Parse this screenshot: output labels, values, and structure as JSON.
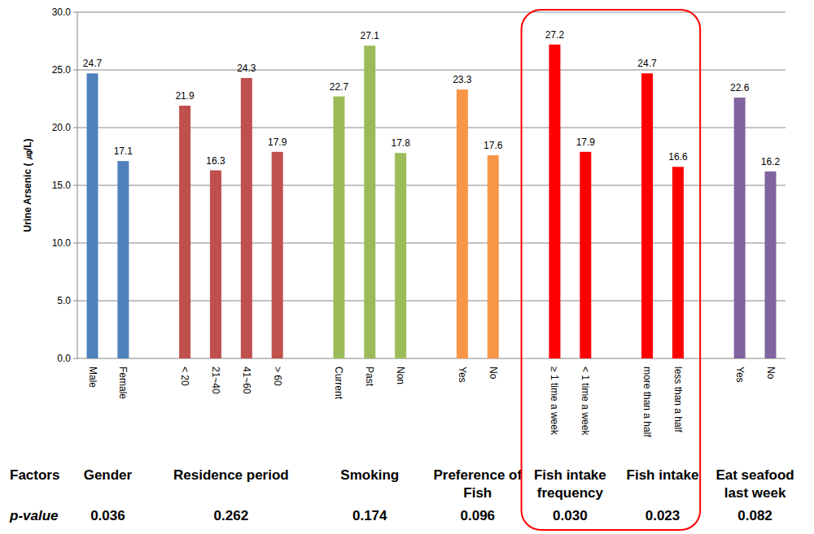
{
  "chart_data": {
    "type": "bar",
    "y_label": "Urine Arsenic ( ㎍/L)",
    "ylim": [
      0,
      30
    ],
    "yticks": [
      {
        "value": 0,
        "label": "0.0"
      },
      {
        "value": 5,
        "label": "5.0"
      },
      {
        "value": 10,
        "label": "10.0"
      },
      {
        "value": 15,
        "label": "15.0"
      },
      {
        "value": 20,
        "label": "20.0"
      },
      {
        "value": 25,
        "label": "25.0"
      },
      {
        "value": 30,
        "label": "30.0"
      }
    ],
    "grid": true,
    "data_labels": true,
    "factors_label": "Factors",
    "p_value_label": "p-value",
    "groups": [
      {
        "label": [
          "Gender"
        ],
        "p_value": {
          "value": 0.036,
          "label": "0.036"
        },
        "color": "#4f81bd",
        "categories": [
          "Male",
          "Female"
        ],
        "values": [
          24.7,
          17.1
        ]
      },
      {
        "label": [
          "Residence period"
        ],
        "p_value": {
          "value": 0.262,
          "label": "0.262"
        },
        "color": "#c0504d",
        "categories": [
          "< 20",
          "21~40",
          "41~60",
          "> 60"
        ],
        "values": [
          21.9,
          16.3,
          24.3,
          17.9
        ]
      },
      {
        "label": [
          "Smoking"
        ],
        "p_value": {
          "value": 0.174,
          "label": "0.174"
        },
        "color": "#9bbb59",
        "categories": [
          "Current",
          "Past",
          "Non"
        ],
        "values": [
          22.7,
          27.1,
          17.8
        ]
      },
      {
        "label": [
          "Preference of",
          "Fish"
        ],
        "p_value": {
          "value": 0.096,
          "label": "0.096"
        },
        "color": "#f79646",
        "categories": [
          "Yes",
          "No"
        ],
        "values": [
          23.3,
          17.6
        ]
      },
      {
        "label": [
          "Fish intake",
          "frequency"
        ],
        "p_value": {
          "value": 0.03,
          "label": "0.030"
        },
        "color": "#ff0000",
        "highlight": true,
        "categories": [
          "≥ 1 time a week",
          "< 1 time a week"
        ],
        "values": [
          27.2,
          17.9
        ]
      },
      {
        "label": [
          "Fish intake"
        ],
        "p_value": {
          "value": 0.023,
          "label": "0.023"
        },
        "color": "#ff0000",
        "highlight": true,
        "categories": [
          "more than a half",
          "less than a half"
        ],
        "values": [
          24.7,
          16.6
        ]
      },
      {
        "label": [
          "Eat seafood",
          "last week"
        ],
        "p_value": {
          "value": 0.082,
          "label": "0.082"
        },
        "color": "#8064a2",
        "categories": [
          "Yes",
          "No"
        ],
        "values": [
          22.6,
          16.2
        ]
      }
    ]
  }
}
